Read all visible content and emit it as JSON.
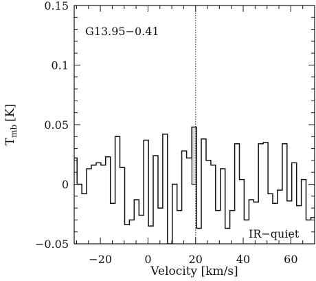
{
  "chart_data": {
    "type": "line",
    "xlabel": "Velocity [km/s]",
    "ylabel_main": "T",
    "ylabel_sub": "mb",
    "ylabel_unit": "[K]",
    "xlim": [
      -31,
      70
    ],
    "ylim": [
      -0.05,
      0.15
    ],
    "xticks": [
      -20,
      0,
      20,
      40,
      60
    ],
    "yticks": [
      -0.05,
      0,
      0.05,
      0.1,
      0.15
    ],
    "ytick_labels": [
      "−0.05",
      "0",
      "0.05",
      "0.1",
      "0.15"
    ],
    "xtick_labels": [
      "−20",
      "0",
      "20",
      "40",
      "60"
    ],
    "source_name": "G13.95−0.41",
    "classification": "IR−quiet",
    "marker_velocity": 20,
    "highlight_bin": [
      18.4,
      20.4,
      0.048
    ],
    "series": [
      {
        "values": [
          [
            -31.0,
            0.022
          ],
          [
            -29.8,
            0.0
          ],
          [
            -27.8,
            -0.008
          ],
          [
            -25.8,
            0.013
          ],
          [
            -23.8,
            0.016
          ],
          [
            -21.8,
            0.018
          ],
          [
            -19.8,
            0.016
          ],
          [
            -17.8,
            0.023
          ],
          [
            -15.8,
            -0.016
          ],
          [
            -13.8,
            0.04
          ],
          [
            -11.8,
            0.014
          ],
          [
            -9.8,
            -0.034
          ],
          [
            -7.8,
            -0.03
          ],
          [
            -5.8,
            -0.013
          ],
          [
            -3.8,
            -0.026
          ],
          [
            -1.8,
            0.037
          ],
          [
            0.2,
            -0.035
          ],
          [
            2.2,
            0.024
          ],
          [
            4.2,
            -0.02
          ],
          [
            6.2,
            0.042
          ],
          [
            8.2,
            -0.05
          ],
          [
            10.2,
            0.0
          ],
          [
            12.2,
            -0.022
          ],
          [
            14.2,
            0.028
          ],
          [
            16.2,
            0.022
          ],
          [
            18.4,
            0.048
          ],
          [
            20.4,
            -0.037
          ],
          [
            22.4,
            0.038
          ],
          [
            24.4,
            0.02
          ],
          [
            26.4,
            0.016
          ],
          [
            28.4,
            -0.022
          ],
          [
            30.4,
            0.013
          ],
          [
            32.4,
            -0.037
          ],
          [
            34.4,
            -0.022
          ],
          [
            36.4,
            0.034
          ],
          [
            38.4,
            0.004
          ],
          [
            40.4,
            -0.03
          ],
          [
            42.4,
            -0.013
          ],
          [
            44.4,
            -0.015
          ],
          [
            46.4,
            0.034
          ],
          [
            48.4,
            0.035
          ],
          [
            50.4,
            -0.008
          ],
          [
            52.4,
            -0.016
          ],
          [
            54.4,
            -0.005
          ],
          [
            56.4,
            0.034
          ],
          [
            58.4,
            -0.014
          ],
          [
            60.4,
            0.018
          ],
          [
            62.4,
            -0.018
          ],
          [
            64.4,
            0.004
          ],
          [
            66.4,
            -0.03
          ],
          [
            68.4,
            -0.028
          ],
          [
            70.0,
            -0.028
          ]
        ]
      }
    ]
  }
}
